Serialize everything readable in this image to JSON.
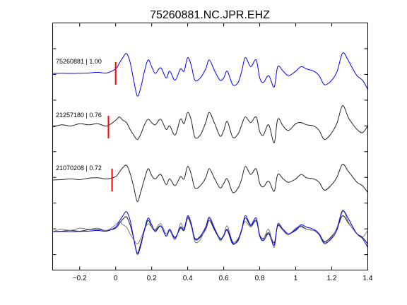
{
  "chart_data": {
    "type": "line",
    "title": "75260881.NC.JPR.EHZ",
    "xlabel": "",
    "ylabel": "",
    "xlim": [
      -0.35,
      1.4
    ],
    "x_ticks": [
      -0.2,
      0,
      0.2,
      0.4,
      0.6,
      0.8,
      1,
      1.2,
      1.4
    ],
    "x_tick_labels": [
      "−0.2",
      "0",
      "0.2",
      "0.4",
      "0.6",
      "0.8",
      "1",
      "1.2",
      "1.4"
    ],
    "grid": false,
    "colors": {
      "primary": "#0000ff",
      "secondary": "#222222",
      "overlay_secondary": "#777777",
      "pick": "#ff0000",
      "axis": "#000000"
    },
    "trace_x": [
      -0.35,
      -0.3,
      -0.25,
      -0.2,
      -0.15,
      -0.1,
      -0.05,
      0,
      0.02,
      0.04,
      0.06,
      0.08,
      0.1,
      0.12,
      0.14,
      0.16,
      0.18,
      0.2,
      0.22,
      0.25,
      0.28,
      0.3,
      0.33,
      0.36,
      0.38,
      0.4,
      0.42,
      0.44,
      0.47,
      0.5,
      0.52,
      0.55,
      0.58,
      0.6,
      0.62,
      0.65,
      0.68,
      0.7,
      0.72,
      0.75,
      0.78,
      0.8,
      0.82,
      0.85,
      0.88,
      0.9,
      0.93,
      0.96,
      1,
      1.03,
      1.06,
      1.1,
      1.13,
      1.16,
      1.2,
      1.23,
      1.26,
      1.29,
      1.31,
      1.34,
      1.37,
      1.4
    ],
    "series": [
      {
        "label": "75260881 | 1.00",
        "pick_time": 0,
        "y": [
          0,
          0.01,
          0,
          0.01,
          0.02,
          0.05,
          0.02,
          0.2,
          0.45,
          0.7,
          0.88,
          0.5,
          -0.3,
          -1.0,
          -0.6,
          0.1,
          0.6,
          0.3,
          0,
          0.25,
          -0.2,
          0.1,
          -0.3,
          0.2,
          0.1,
          0.7,
          0.35,
          -0.3,
          -0.2,
          0.2,
          0.6,
          0.1,
          -0.3,
          -0.2,
          0.1,
          -0.5,
          -0.4,
          0.1,
          0.7,
          0.3,
          0.6,
          -0.2,
          -0.4,
          -0.1,
          -0.6,
          0.3,
          0.1,
          -0.1,
          0.1,
          0.3,
          0.2,
          0.1,
          -0.1,
          -0.5,
          -0.3,
          0.1,
          0.9,
          0.6,
          0.3,
          -0.1,
          -0.3,
          -0.7
        ]
      },
      {
        "label": "21257180 | 0.76",
        "pick_time": -0.04,
        "y": [
          0,
          0.1,
          0.05,
          0.15,
          0.1,
          0.15,
          0.05,
          0.3,
          0.45,
          0.3,
          0.2,
          -0.1,
          -0.35,
          -0.55,
          -0.3,
          0.1,
          0.35,
          0.2,
          0.1,
          0.35,
          -0.1,
          0.05,
          -0.35,
          0.35,
          0.15,
          0.65,
          0.3,
          -0.45,
          -0.35,
          0.2,
          0.65,
          0.15,
          -0.4,
          -0.15,
          0.25,
          -0.45,
          -0.3,
          0.1,
          0.45,
          0.2,
          0.45,
          -0.2,
          -0.35,
          0.1,
          -0.7,
          0.35,
          0.05,
          -0.15,
          0.15,
          0.2,
          0.1,
          0.05,
          -0.15,
          -0.55,
          -0.25,
          0.2,
          0.95,
          0.45,
          0.2,
          -0.1,
          -0.25,
          0.05
        ]
      },
      {
        "label": "21070208 | 0.72",
        "pick_time": -0.02,
        "y": [
          0,
          0.02,
          0.05,
          0.02,
          0.08,
          0.1,
          0.05,
          0.15,
          0.35,
          0.55,
          0.65,
          0.3,
          -0.3,
          -0.95,
          -0.5,
          0.05,
          0.5,
          0.2,
          0.05,
          0.25,
          -0.2,
          0.05,
          -0.25,
          0.15,
          0.05,
          0.6,
          0.25,
          -0.35,
          -0.25,
          0.1,
          0.5,
          0.05,
          -0.35,
          -0.15,
          0.05,
          -0.55,
          -0.35,
          0.05,
          0.6,
          0.25,
          0.5,
          -0.15,
          -0.3,
          -0.05,
          -0.5,
          0.25,
          0.05,
          -0.1,
          0.05,
          0.25,
          0.1,
          0.05,
          -0.1,
          -0.45,
          -0.2,
          0.15,
          0.7,
          0.4,
          0.2,
          -0.1,
          -0.25,
          -0.55
        ]
      }
    ]
  }
}
